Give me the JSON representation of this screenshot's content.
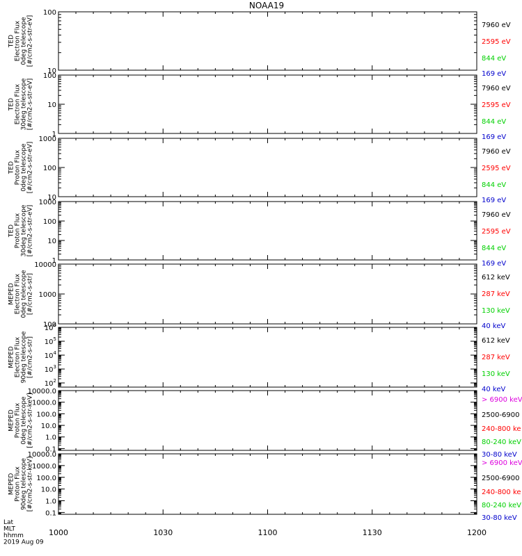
{
  "title": "NOAA19",
  "colors": {
    "black": "#000000",
    "red": "#ff0000",
    "green": "#00d000",
    "blue": "#0000cc",
    "magenta": "#dd00dd"
  },
  "footer": {
    "labels": [
      "Lat",
      "MLT",
      "hhmm",
      "2019 Aug 09"
    ]
  },
  "chart_data": [
    {
      "type": "line",
      "ylabel": [
        "TED",
        "Electron Flux",
        "0deg telescope",
        "[#/cm2-s-str-eV]"
      ],
      "y_scale": "log",
      "ylim": [
        10,
        100
      ],
      "yticks": [
        {
          "v": 10,
          "label": "10"
        },
        {
          "v": 100,
          "label": "100"
        }
      ],
      "series": [
        {
          "name": "7960 eV",
          "color": "#000000",
          "values": []
        },
        {
          "name": "2595 eV",
          "color": "#ff0000",
          "values": []
        },
        {
          "name": "844 eV",
          "color": "#00d000",
          "values": []
        },
        {
          "name": "169 eV",
          "color": "#0000cc",
          "values": []
        }
      ]
    },
    {
      "type": "line",
      "ylabel": [
        "TED",
        "Electron Flux",
        "30deg telescope",
        "[#/cm2-s-str-eV]"
      ],
      "y_scale": "log",
      "ylim": [
        1,
        100
      ],
      "yticks": [
        {
          "v": 1,
          "label": "1"
        },
        {
          "v": 10,
          "label": "10"
        },
        {
          "v": 100,
          "label": "100"
        }
      ],
      "series": [
        {
          "name": "7960 eV",
          "color": "#000000",
          "values": []
        },
        {
          "name": "2595 eV",
          "color": "#ff0000",
          "values": []
        },
        {
          "name": "844 eV",
          "color": "#00d000",
          "values": []
        },
        {
          "name": "169 eV",
          "color": "#0000cc",
          "values": []
        }
      ]
    },
    {
      "type": "line",
      "ylabel": [
        "TED",
        "Proton Flux",
        "0deg telescope",
        "[#/cm2-s-str-eV]"
      ],
      "y_scale": "log",
      "ylim": [
        10,
        1000
      ],
      "yticks": [
        {
          "v": 10,
          "label": "10"
        },
        {
          "v": 100,
          "label": "100"
        },
        {
          "v": 1000,
          "label": "1000"
        }
      ],
      "series": [
        {
          "name": "7960 eV",
          "color": "#000000",
          "values": []
        },
        {
          "name": "2595 eV",
          "color": "#ff0000",
          "values": []
        },
        {
          "name": "844 eV",
          "color": "#00d000",
          "values": []
        },
        {
          "name": "169 eV",
          "color": "#0000cc",
          "values": []
        }
      ]
    },
    {
      "type": "line",
      "ylabel": [
        "TED",
        "Proton Flux",
        "30deg telescope",
        "[#/cm2-s-str-eV]"
      ],
      "y_scale": "log",
      "ylim": [
        1,
        1000
      ],
      "yticks": [
        {
          "v": 1,
          "label": "1"
        },
        {
          "v": 10,
          "label": "10"
        },
        {
          "v": 100,
          "label": "100"
        },
        {
          "v": 1000,
          "label": "1000"
        }
      ],
      "series": [
        {
          "name": "7960 eV",
          "color": "#000000",
          "values": []
        },
        {
          "name": "2595 eV",
          "color": "#ff0000",
          "values": []
        },
        {
          "name": "844 eV",
          "color": "#00d000",
          "values": []
        },
        {
          "name": "169 eV",
          "color": "#0000cc",
          "values": []
        }
      ]
    },
    {
      "type": "line",
      "ylabel": [
        "MEPED",
        "Electron Flux",
        "0deg telescope",
        "[#/cm2-s-str]"
      ],
      "y_scale": "log",
      "ylim": [
        100,
        10000
      ],
      "yticks": [
        {
          "v": 100,
          "label": "100"
        },
        {
          "v": 1000,
          "label": "1000"
        },
        {
          "v": 10000,
          "label": "10000"
        }
      ],
      "series": [
        {
          "name": "612 keV",
          "color": "#000000",
          "values": []
        },
        {
          "name": "287 keV",
          "color": "#ff0000",
          "values": []
        },
        {
          "name": "130 keV",
          "color": "#00d000",
          "values": []
        },
        {
          "name": "40 keV",
          "color": "#0000cc",
          "values": []
        }
      ]
    },
    {
      "type": "line",
      "ylabel": [
        "MEPED",
        "Electron Flux",
        "90deg telescope",
        "[#/cm2-s-str]"
      ],
      "y_scale": "log",
      "ylim": [
        50,
        1000000
      ],
      "yticks": [
        {
          "v": 100,
          "base": "10",
          "exp": "2"
        },
        {
          "v": 1000,
          "base": "10",
          "exp": "3"
        },
        {
          "v": 10000,
          "base": "10",
          "exp": "4"
        },
        {
          "v": 100000,
          "base": "10",
          "exp": "5"
        },
        {
          "v": 1000000,
          "base": "10",
          "exp": "6"
        }
      ],
      "series": [
        {
          "name": "612 keV",
          "color": "#000000",
          "values": []
        },
        {
          "name": "287 keV",
          "color": "#ff0000",
          "values": []
        },
        {
          "name": "130 keV",
          "color": "#00d000",
          "values": []
        },
        {
          "name": "40 keV",
          "color": "#0000cc",
          "values": []
        }
      ]
    },
    {
      "type": "line",
      "ylabel": [
        "MEPED",
        "Proton Flux",
        "0deg telescope",
        "[#/cm2-s-str-keV]"
      ],
      "y_scale": "log",
      "ylim": [
        0.07,
        10000
      ],
      "yticks": [
        {
          "v": 0.1,
          "label": "0.1"
        },
        {
          "v": 1,
          "label": "1.0"
        },
        {
          "v": 10,
          "label": "10.0"
        },
        {
          "v": 100,
          "label": "100.0"
        },
        {
          "v": 1000,
          "label": "1000.0"
        },
        {
          "v": 10000,
          "label": "10000.0"
        }
      ],
      "series": [
        {
          "name": "> 6900 keV",
          "color": "#dd00dd",
          "values": []
        },
        {
          "name": "2500-6900",
          "color": "#000000",
          "values": []
        },
        {
          "name": "240-800 ke",
          "color": "#ff0000",
          "values": []
        },
        {
          "name": "80-240 keV",
          "color": "#00d000",
          "values": []
        },
        {
          "name": "30-80 keV",
          "color": "#0000cc",
          "values": []
        }
      ]
    },
    {
      "type": "line",
      "ylabel": [
        "MEPED",
        "Proton Flux",
        "90deg telescope",
        "[#/cm2-s-str-keV]"
      ],
      "y_scale": "log",
      "ylim": [
        0.07,
        10000
      ],
      "yticks": [
        {
          "v": 0.1,
          "label": "0.1"
        },
        {
          "v": 1,
          "label": "1.0"
        },
        {
          "v": 10,
          "label": "10.0"
        },
        {
          "v": 100,
          "label": "100.0"
        },
        {
          "v": 1000,
          "label": "1000.0"
        },
        {
          "v": 10000,
          "label": "10000.0"
        }
      ],
      "series": [
        {
          "name": "> 6900 keV",
          "color": "#dd00dd",
          "values": []
        },
        {
          "name": "2500-6900",
          "color": "#000000",
          "values": []
        },
        {
          "name": "240-800 ke",
          "color": "#ff0000",
          "values": []
        },
        {
          "name": "80-240 keV",
          "color": "#00d000",
          "values": []
        },
        {
          "name": "30-80 keV",
          "color": "#0000cc",
          "values": []
        }
      ]
    }
  ],
  "x_axis": {
    "range": [
      "1000",
      "1200"
    ],
    "major_ticks": [
      "1000",
      "1030",
      "1100",
      "1130",
      "1200"
    ]
  }
}
